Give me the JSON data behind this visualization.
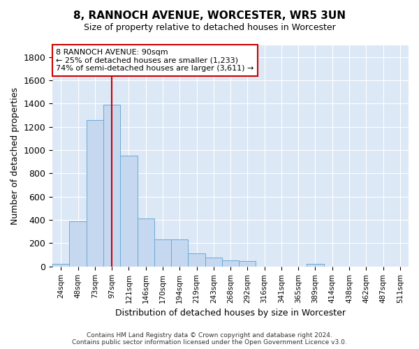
{
  "title1": "8, RANNOCH AVENUE, WORCESTER, WR5 3UN",
  "title2": "Size of property relative to detached houses in Worcester",
  "xlabel": "Distribution of detached houses by size in Worcester",
  "ylabel": "Number of detached properties",
  "categories": [
    "24sqm",
    "48sqm",
    "73sqm",
    "97sqm",
    "121sqm",
    "146sqm",
    "170sqm",
    "194sqm",
    "219sqm",
    "243sqm",
    "268sqm",
    "292sqm",
    "316sqm",
    "341sqm",
    "365sqm",
    "389sqm",
    "414sqm",
    "438sqm",
    "462sqm",
    "487sqm",
    "511sqm"
  ],
  "values": [
    25,
    390,
    1260,
    1390,
    950,
    415,
    235,
    235,
    115,
    75,
    50,
    45,
    0,
    0,
    0,
    20,
    0,
    0,
    0,
    0,
    0
  ],
  "bar_color": "#c5d8f0",
  "bar_edge_color": "#6aaad4",
  "plot_bg_color": "#dce8f5",
  "fig_bg_color": "#ffffff",
  "grid_color": "#ffffff",
  "vline_x": 2.98,
  "vline_color": "#cc0000",
  "annotation_line1": "8 RANNOCH AVENUE: 90sqm",
  "annotation_line2": "← 25% of detached houses are smaller (1,233)",
  "annotation_line3": "74% of semi-detached houses are larger (3,611) →",
  "annotation_box_color": "#ffffff",
  "annotation_box_edge": "#cc0000",
  "ylim": [
    0,
    1900
  ],
  "yticks": [
    0,
    200,
    400,
    600,
    800,
    1000,
    1200,
    1400,
    1600,
    1800
  ],
  "footer": "Contains HM Land Registry data © Crown copyright and database right 2024.\nContains public sector information licensed under the Open Government Licence v3.0."
}
